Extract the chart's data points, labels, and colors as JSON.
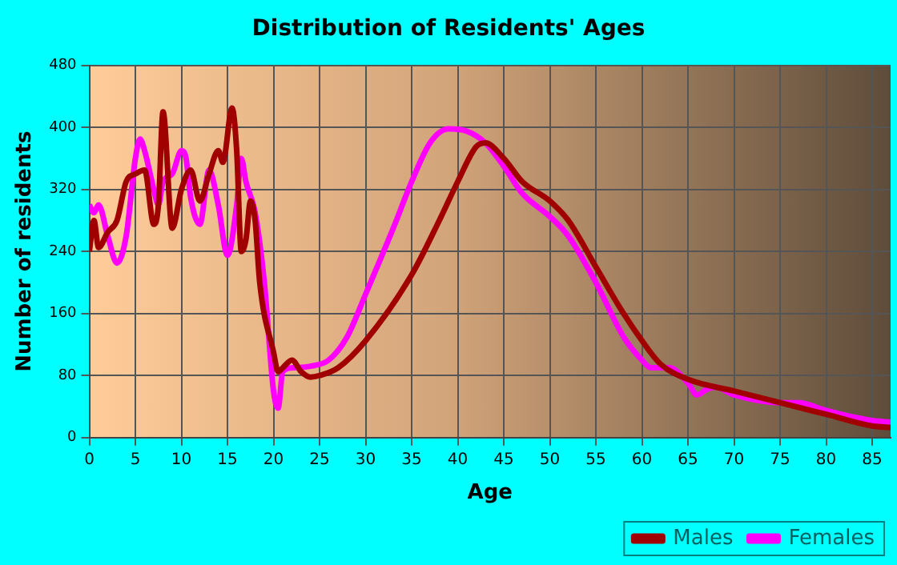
{
  "chart_data": {
    "type": "line",
    "title": "Distribution of Residents' Ages",
    "xlabel": "Age",
    "ylabel": "Number of residents",
    "xlim": [
      0,
      87
    ],
    "xticks": [
      0,
      5,
      10,
      15,
      20,
      25,
      30,
      35,
      40,
      45,
      50,
      55,
      60,
      65,
      70,
      75,
      80,
      85
    ],
    "ylim": [
      0,
      480
    ],
    "yticks": [
      0,
      80,
      160,
      240,
      320,
      400,
      480
    ],
    "grid": true,
    "legend": "bottom right",
    "marker": "none",
    "line_style": "solid",
    "series": [
      {
        "name": "Males",
        "color": "#a00000",
        "x": [
          0,
          0.5,
          1,
          2,
          3,
          4,
          5,
          6,
          7,
          7.5,
          8,
          9,
          10,
          11,
          12,
          13,
          14,
          14.5,
          15.5,
          16,
          16.5,
          17,
          17.5,
          18,
          18.5,
          20,
          20.5,
          21,
          22,
          23,
          24,
          25,
          27,
          30,
          35,
          38,
          40,
          42,
          43,
          45,
          47,
          50,
          52,
          55,
          58,
          60,
          62,
          65,
          70,
          75,
          80,
          85,
          87
        ],
        "values": [
          240,
          280,
          245,
          265,
          280,
          330,
          340,
          345,
          275,
          300,
          420,
          270,
          320,
          345,
          305,
          340,
          370,
          355,
          425,
          370,
          240,
          255,
          305,
          280,
          200,
          110,
          85,
          90,
          100,
          85,
          78,
          80,
          90,
          125,
          210,
          280,
          330,
          375,
          380,
          360,
          330,
          305,
          280,
          220,
          160,
          125,
          95,
          75,
          60,
          45,
          30,
          15,
          13
        ]
      },
      {
        "name": "Females",
        "color": "#ff00ff",
        "x": [
          0,
          0.5,
          1,
          2,
          3,
          4,
          5,
          5.5,
          6,
          7,
          7.5,
          8,
          9,
          10,
          10.5,
          11,
          12,
          13,
          14,
          15,
          16,
          16.5,
          17,
          18,
          19,
          20,
          20.5,
          21,
          22,
          24,
          26,
          28,
          30,
          33,
          35,
          37,
          39,
          41,
          43,
          45,
          47,
          50,
          52,
          55,
          58,
          60,
          61,
          63,
          65,
          66,
          67,
          68,
          70,
          75,
          77,
          80,
          85,
          87
        ],
        "values": [
          300,
          290,
          300,
          260,
          225,
          260,
          360,
          385,
          370,
          320,
          300,
          330,
          340,
          370,
          360,
          310,
          275,
          345,
          300,
          235,
          300,
          360,
          330,
          290,
          200,
          60,
          38,
          85,
          90,
          92,
          100,
          130,
          185,
          270,
          330,
          380,
          398,
          395,
          380,
          350,
          315,
          285,
          260,
          200,
          130,
          100,
          90,
          90,
          70,
          55,
          62,
          65,
          55,
          45,
          45,
          35,
          22,
          20
        ]
      }
    ]
  }
}
